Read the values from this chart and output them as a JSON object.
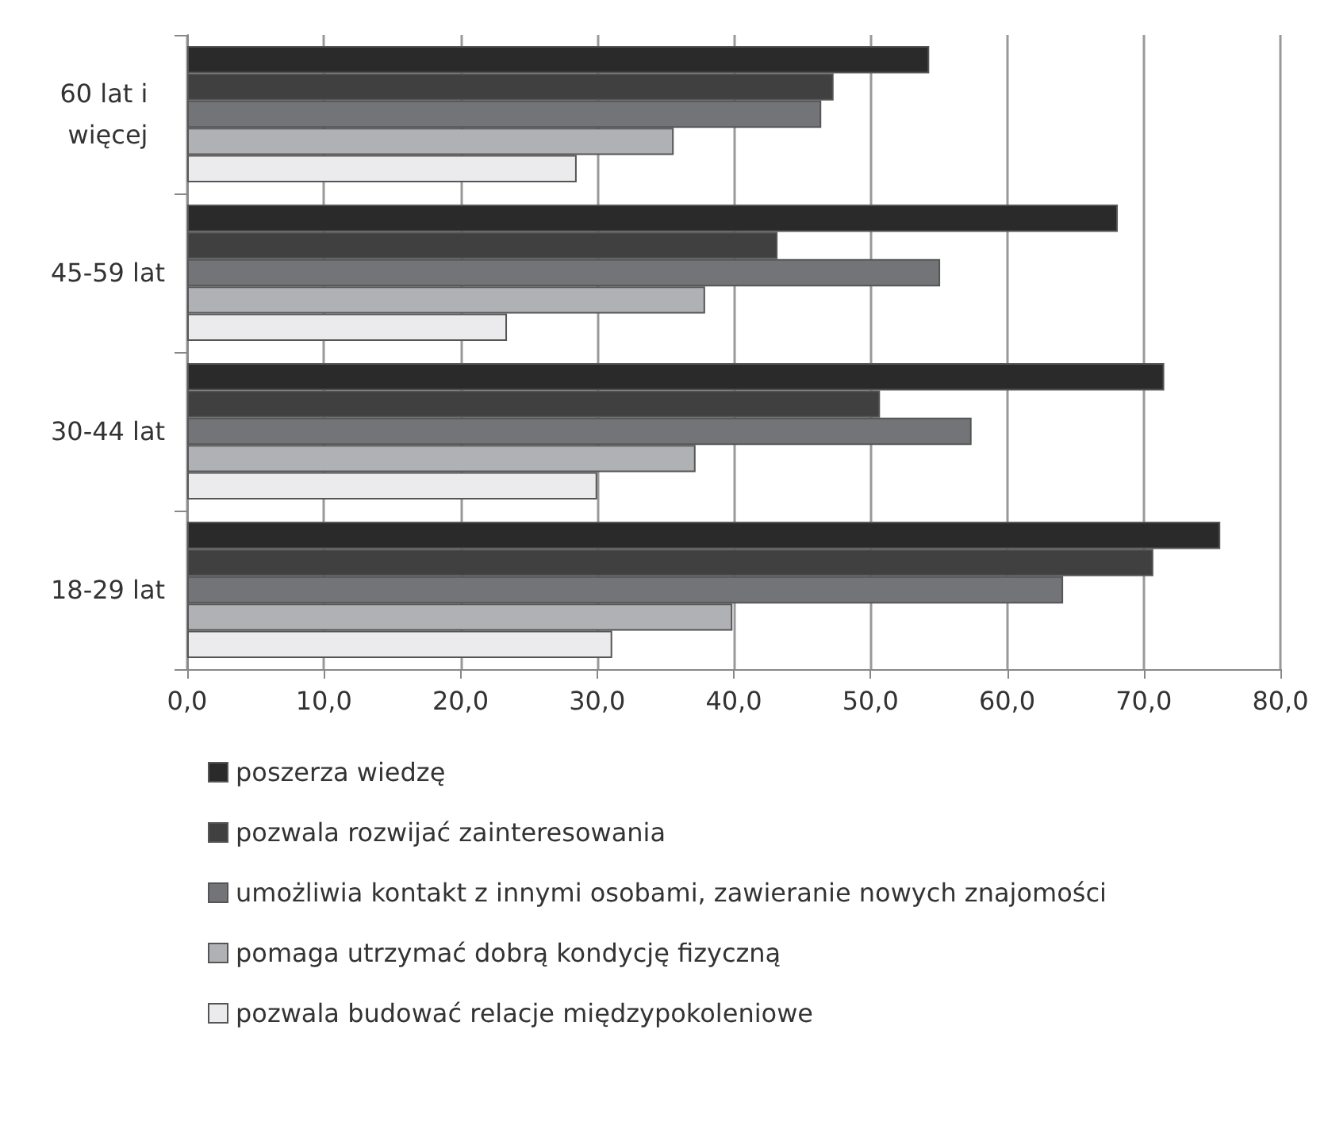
{
  "chart_data": {
    "type": "bar",
    "orientation": "horizontal",
    "categories": [
      "60 lat i więcej",
      "45-59 lat",
      "30-44 lat",
      "18-29 lat"
    ],
    "series": [
      {
        "name": "poszerza wiedzę",
        "color": "#2b2a2b",
        "values": [
          54.3,
          68.1,
          71.5,
          75.6
        ]
      },
      {
        "name": "pozwala rozwijać zainteresowania",
        "color": "#404040",
        "values": [
          47.3,
          43.2,
          50.7,
          70.7
        ]
      },
      {
        "name": "umożliwia kontakt z innymi osobami, zawieranie nowych znajomości",
        "color": "#737478",
        "values": [
          46.4,
          55.1,
          57.4,
          64.1
        ]
      },
      {
        "name": "pomaga utrzymać dobrą kondycję fizyczną",
        "color": "#b0b1b4",
        "values": [
          35.6,
          37.9,
          37.2,
          39.9
        ]
      },
      {
        "name": "pozwala budować relacje międzypokoleniowe",
        "color": "#ebebed",
        "values": [
          28.5,
          23.4,
          30.0,
          31.1
        ]
      }
    ],
    "xlim": [
      0,
      80
    ],
    "xticks": [
      {
        "value": 0,
        "label": "0,0"
      },
      {
        "value": 10,
        "label": "10,0"
      },
      {
        "value": 20,
        "label": "20,0"
      },
      {
        "value": 30,
        "label": "30,0"
      },
      {
        "value": 40,
        "label": "40,0"
      },
      {
        "value": 50,
        "label": "50,0"
      },
      {
        "value": 60,
        "label": "60,0"
      },
      {
        "value": 70,
        "label": "70,0"
      },
      {
        "value": 80,
        "label": "80,0"
      }
    ],
    "grid": "x",
    "legend": "bottom"
  }
}
